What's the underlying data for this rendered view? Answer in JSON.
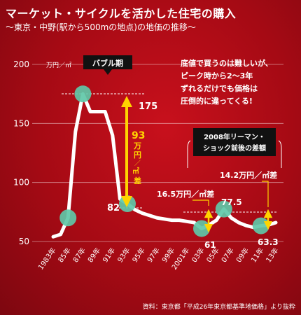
{
  "title": "マーケット・サイクルを活かした住宅の購入",
  "subtitle": "〜東京・中野(駅から500mの地点)の地価の推移〜",
  "source": "資料：東京都「平成26年東京都基準地価格」より抜粋",
  "colors": {
    "background": "#b80d18",
    "line": "#ffffff",
    "highlight": "#5fc8a8",
    "arrow": "#ffd400"
  },
  "chart_data": {
    "type": "line",
    "unit_label": "万円／㎡",
    "x": [
      1983,
      1984,
      1985,
      1986,
      1987,
      1988,
      1989,
      1990,
      1991,
      1992,
      1993,
      1994,
      1995,
      1996,
      1997,
      1998,
      1999,
      2000,
      2001,
      2002,
      2003,
      2004,
      2005,
      2006,
      2007,
      2008,
      2009,
      2010,
      2011,
      2012,
      2013
    ],
    "xticks": [
      "1983年",
      "85年",
      "87年",
      "89年",
      "91年",
      "93年",
      "95年",
      "97年",
      "99年",
      "2001年",
      "03年",
      "05年",
      "07年",
      "09年",
      "11年",
      "13年"
    ],
    "yticks": [
      50,
      100,
      150,
      200
    ],
    "ylim": [
      50,
      200
    ],
    "series": [
      {
        "values": [
          54,
          56,
          70,
          143,
          175,
          160,
          160,
          160,
          140,
          86,
          82,
          77,
          74,
          72,
          70,
          69,
          68,
          68,
          67,
          66,
          61,
          64,
          68,
          77.5,
          70,
          66,
          63.5,
          62,
          63.3,
          64,
          66
        ]
      }
    ],
    "highlights": [
      1985,
      1987,
      1993,
      2003,
      2006,
      2011
    ]
  },
  "annotations": {
    "bubble_label": "バブル期",
    "peak_value": "175",
    "low93_value": "82",
    "drop_num": "93",
    "drop_unit1": "万",
    "drop_unit2": "円",
    "drop_unit3": "／",
    "drop_unit4": "㎡",
    "drop_unit5": "差",
    "val03": "61",
    "val06": "77.5",
    "val11": "63.3",
    "diff1": "16.5万円／㎡差",
    "diff2": "14.2万円／㎡差",
    "note1": "底値で買うのは難しいが、",
    "note2": "ピーク時から2〜3年",
    "note3": "ずれるだけでも価格は",
    "note4": "圧倒的に違ってくる!",
    "lehman1": "2008年リーマン・",
    "lehman2": "ショック前後の差額"
  }
}
